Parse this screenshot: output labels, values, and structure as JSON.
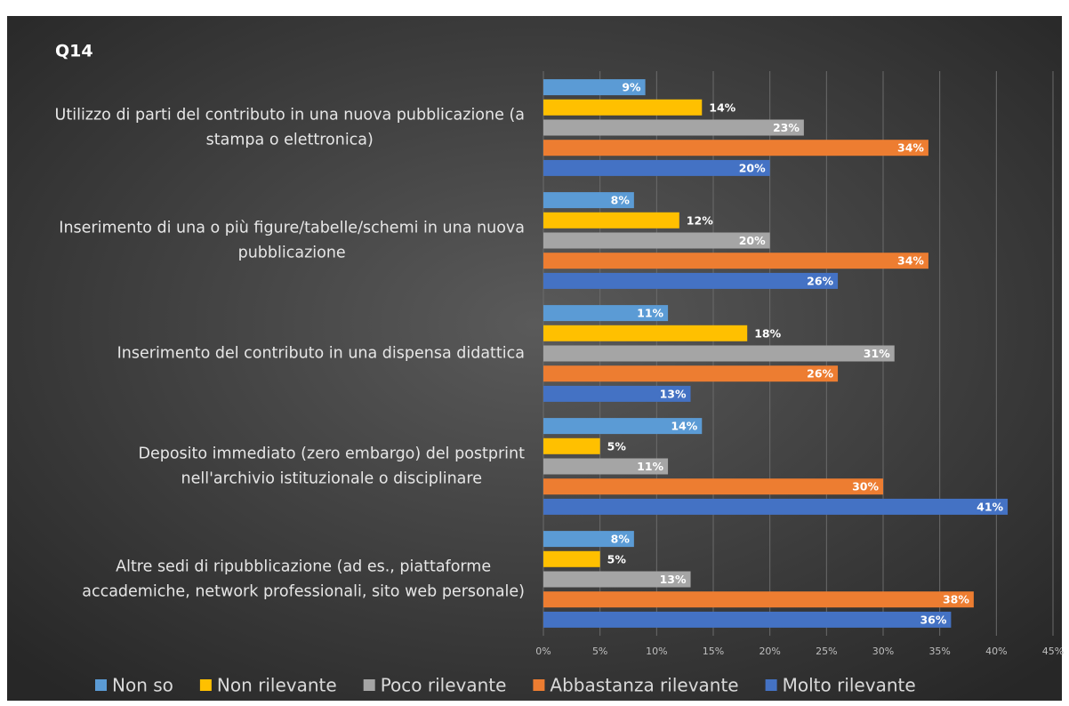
{
  "chart_data": {
    "type": "bar",
    "orientation": "horizontal",
    "title": "Q14",
    "categories": [
      [
        "Utilizzo di parti del contributo in una nuova pubblicazione (a",
        "stampa o elettronica)"
      ],
      [
        "Inserimento di una o più figure/tabelle/schemi  in una nuova",
        "pubblicazione"
      ],
      [
        "Inserimento del contributo in una dispensa didattica"
      ],
      [
        "Deposito immediato (zero embargo) del postprint",
        "nell'archivio istituzionale o disciplinare"
      ],
      [
        "Altre sedi di ripubblicazione (ad es., piattaforme",
        "accademiche, network professionali, sito web personale)"
      ]
    ],
    "series": [
      {
        "name": "Non so",
        "color": "#5b9bd5",
        "values": [
          9,
          8,
          11,
          14,
          8
        ],
        "value_labels": [
          "9%",
          "8%",
          "11%",
          "14%",
          "8%"
        ]
      },
      {
        "name": "Non rilevante",
        "color": "#ffc000",
        "values": [
          14,
          12,
          18,
          5,
          5
        ],
        "value_labels": [
          "14%",
          "12%",
          "18%",
          "5%",
          "5%"
        ]
      },
      {
        "name": "Poco rilevante",
        "color": "#a5a5a5",
        "values": [
          23,
          20,
          31,
          11,
          13
        ],
        "value_labels": [
          "23%",
          "20%",
          "31%",
          "11%",
          "13%"
        ]
      },
      {
        "name": "Abbastanza rilevante",
        "color": "#ed7d31",
        "values": [
          34,
          34,
          26,
          30,
          38
        ],
        "value_labels": [
          "34%",
          "34%",
          "26%",
          "30%",
          "38%"
        ]
      },
      {
        "name": "Molto rilevante",
        "color": "#4472c4",
        "values": [
          20,
          26,
          13,
          41,
          36
        ],
        "value_labels": [
          "20%",
          "26%",
          "13%",
          "41%",
          "36%"
        ]
      }
    ],
    "xlim": [
      0,
      45
    ],
    "xticks": [
      {
        "value": 0,
        "label": "0%"
      },
      {
        "value": 5,
        "label": "5%"
      },
      {
        "value": 10,
        "label": "10%"
      },
      {
        "value": 15,
        "label": "15%"
      },
      {
        "value": 20,
        "label": "20%"
      },
      {
        "value": 25,
        "label": "25%"
      },
      {
        "value": 30,
        "label": "30%"
      },
      {
        "value": 35,
        "label": "35%"
      },
      {
        "value": 40,
        "label": "40%"
      },
      {
        "value": 45,
        "label": "45%"
      }
    ],
    "grid": true,
    "legend": "bottom"
  }
}
